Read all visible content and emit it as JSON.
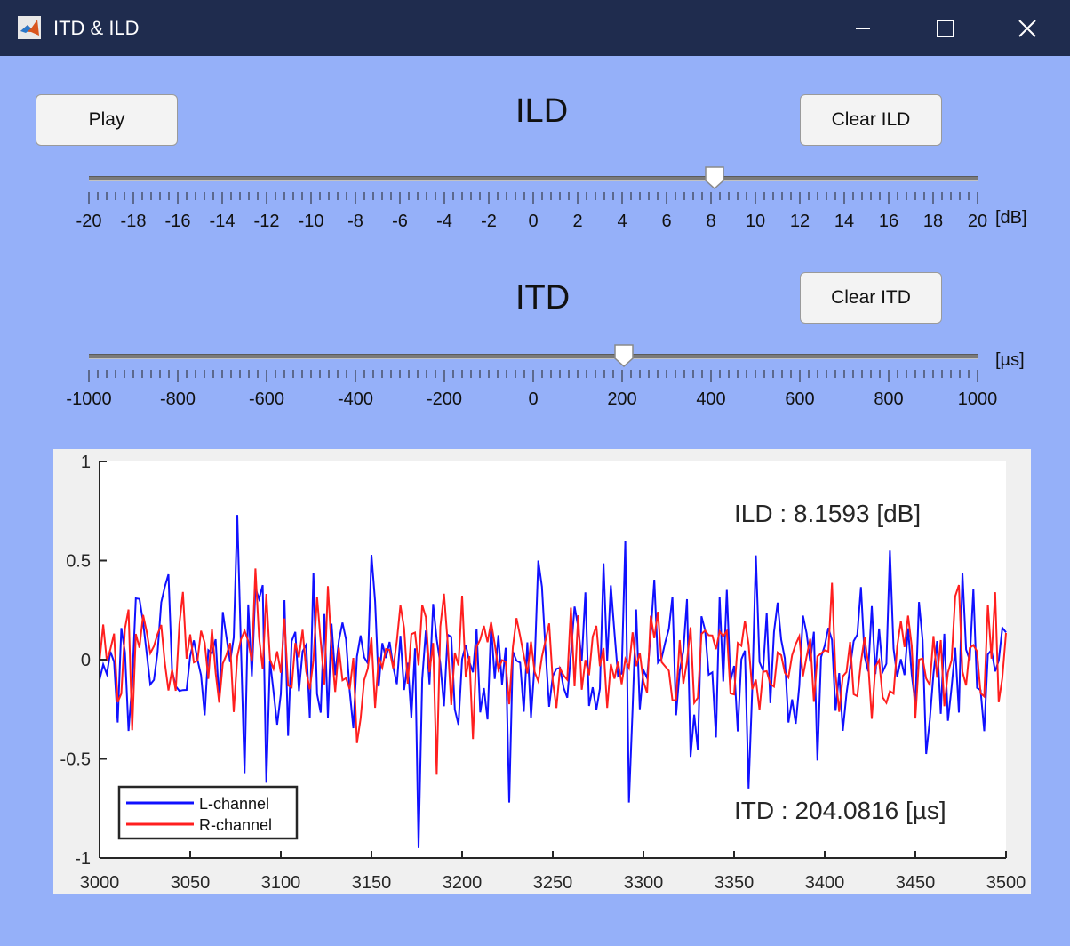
{
  "window": {
    "title": "ITD & ILD",
    "colors": {
      "titlebar": "#1f2c4e",
      "background": "#95b0f9"
    }
  },
  "controls": {
    "play_label": "Play",
    "clear_ild_label": "Clear ILD",
    "clear_itd_label": "Clear ITD"
  },
  "ild_slider": {
    "heading": "ILD",
    "unit": "[dB]",
    "min": -20,
    "max": 20,
    "value": 8.1593,
    "tick_labels": [
      "-20",
      "-18",
      "-16",
      "-14",
      "-12",
      "-10",
      "-8",
      "-6",
      "-4",
      "-2",
      "0",
      "2",
      "4",
      "6",
      "8",
      "10",
      "12",
      "14",
      "16",
      "18",
      "20"
    ]
  },
  "itd_slider": {
    "heading": "ITD",
    "unit": "[µs]",
    "min": -1000,
    "max": 1000,
    "value": 204.0816,
    "tick_labels": [
      "-1000",
      "-800",
      "-600",
      "-400",
      "-200",
      "0",
      "200",
      "400",
      "600",
      "800",
      "1000"
    ]
  },
  "chart_data": {
    "type": "line",
    "xlim": [
      3000,
      3500
    ],
    "ylim": [
      -1,
      1
    ],
    "xticks": [
      "3000",
      "3050",
      "3100",
      "3150",
      "3200",
      "3250",
      "3300",
      "3350",
      "3400",
      "3450",
      "3500"
    ],
    "yticks": [
      "1",
      "0.5",
      "0",
      "-0.5",
      "-1"
    ],
    "annotations": [
      "ILD : 8.1593 [dB]",
      "ITD : 204.0816 [µs]"
    ],
    "legend_position": "bottom-left",
    "series": [
      {
        "name": "L-channel",
        "color": "#1010ff",
        "seed": 1337,
        "amplitude": 0.2,
        "peaks": [
          [
            3076,
            0.73
          ],
          [
            3175,
            -0.95
          ],
          [
            3290,
            0.6
          ],
          [
            3292,
            -0.72
          ],
          [
            3358,
            -0.65
          ],
          [
            3225,
            -0.72
          ],
          [
            3092,
            -0.62
          ],
          [
            3436,
            0.55
          ]
        ]
      },
      {
        "name": "R-channel",
        "color": "#ff1f1f",
        "seed": 4242,
        "amplitude": 0.13,
        "peaks": [
          [
            3086,
            0.46
          ],
          [
            3185,
            -0.58
          ],
          [
            3205,
            -0.4
          ]
        ]
      }
    ]
  }
}
